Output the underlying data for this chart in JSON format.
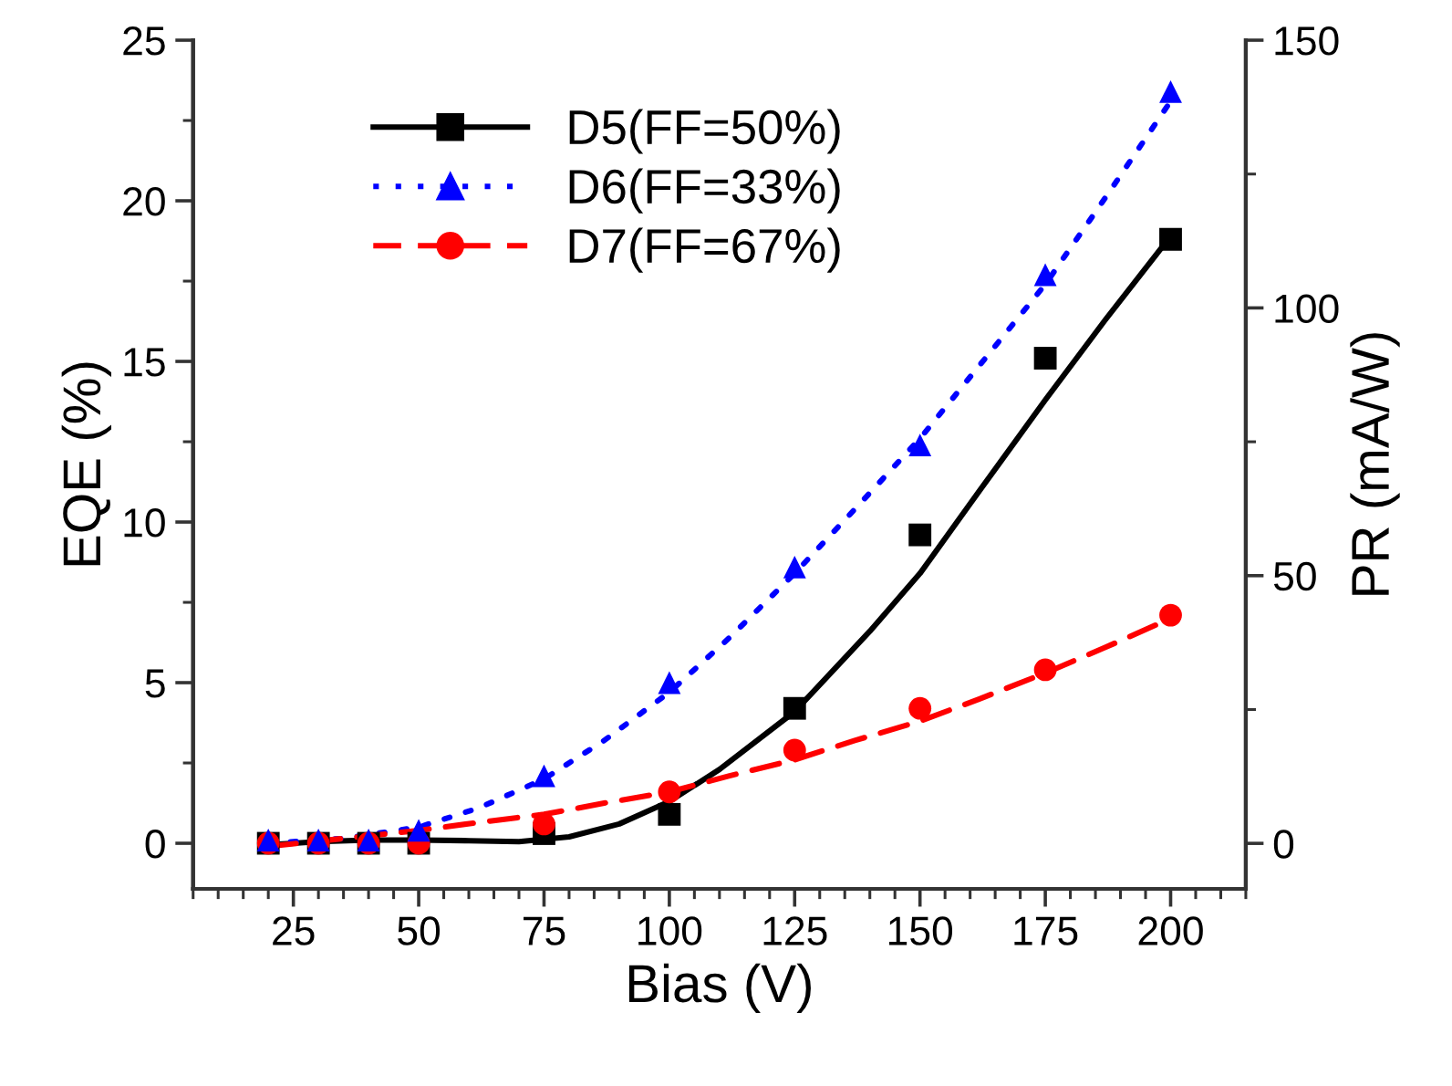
{
  "chart_data": {
    "type": "scatter",
    "xlabel": "Bias (V)",
    "ylabel": "EQE (%)",
    "y2label": "PR (mA/W)",
    "xlim": [
      5,
      215
    ],
    "xticks": [
      25,
      50,
      75,
      100,
      125,
      150,
      175,
      200
    ],
    "ylim": [
      -1.42,
      25
    ],
    "yticks": [
      0,
      5,
      10,
      15,
      20,
      25
    ],
    "y2lim": [
      -8.5,
      150
    ],
    "y2ticks": [
      0,
      50,
      100,
      150
    ],
    "grid": false,
    "legend": "top left",
    "series": [
      {
        "name": "D5(FF=50%)",
        "marker": "square",
        "color": "#000000",
        "x": [
          20,
          30,
          40,
          50,
          75,
          100,
          125,
          150,
          175,
          200
        ],
        "values": [
          0,
          0,
          0,
          0,
          0.3,
          0.9,
          4.2,
          9.6,
          15.1,
          18.8
        ]
      },
      {
        "name": "D6(FF=33%)",
        "marker": "triangle",
        "color": "#0000ff",
        "x": [
          20,
          30,
          40,
          50,
          75,
          100,
          125,
          150,
          175,
          200
        ],
        "values": [
          0.1,
          0.1,
          0.1,
          0.4,
          2.1,
          5.0,
          8.6,
          12.4,
          17.7,
          23.4
        ]
      },
      {
        "name": "D7(FF=67%)",
        "marker": "circle",
        "color": "#ff0000",
        "x": [
          20,
          30,
          40,
          50,
          75,
          100,
          125,
          150,
          175,
          200
        ],
        "values": [
          0,
          0,
          0,
          0,
          0.6,
          1.6,
          2.9,
          4.2,
          5.4,
          7.1
        ]
      },
      {
        "type": "line",
        "line_style": "solid",
        "color": "#000000",
        "x": [
          20,
          30,
          40,
          50,
          60,
          70,
          80,
          90,
          100,
          110,
          125,
          140,
          150,
          162,
          175,
          187,
          200
        ],
        "values": [
          -0.05,
          0.05,
          0.1,
          0.1,
          0.08,
          0.05,
          0.2,
          0.6,
          1.3,
          2.3,
          4.1,
          6.6,
          8.4,
          11.0,
          13.8,
          16.3,
          18.9
        ]
      },
      {
        "type": "line",
        "line_style": "dotted",
        "color": "#0000ff",
        "x": [
          20,
          35,
          50,
          62,
          75,
          87,
          100,
          112,
          125,
          137,
          150,
          162,
          175,
          187,
          200
        ],
        "values": [
          0,
          0.15,
          0.5,
          1.1,
          2.0,
          3.2,
          4.7,
          6.4,
          8.4,
          10.4,
          12.6,
          14.9,
          17.4,
          20.1,
          23.1
        ]
      },
      {
        "type": "line",
        "line_style": "dashed",
        "color": "#ff0000",
        "x": [
          20,
          35,
          50,
          62,
          75,
          87,
          100,
          112,
          125,
          137,
          150,
          162,
          175,
          187,
          200
        ],
        "values": [
          -0.1,
          0.15,
          0.4,
          0.65,
          0.9,
          1.25,
          1.6,
          2.1,
          2.6,
          3.2,
          3.8,
          4.5,
          5.3,
          6.1,
          7.0
        ]
      }
    ]
  }
}
